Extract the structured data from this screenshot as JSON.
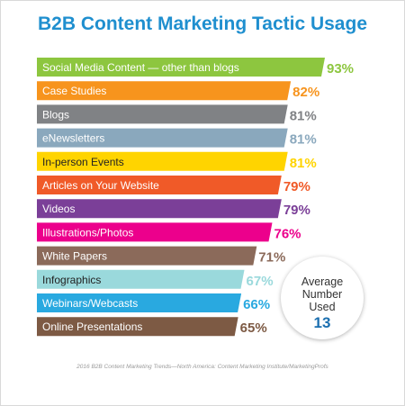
{
  "chart_data": {
    "type": "bar",
    "orientation": "horizontal",
    "title": "B2B Content Marketing Tactic Usage",
    "categories": [
      "Social Media Content — other than blogs",
      "Case Studies",
      "Blogs",
      "eNewsletters",
      "In-person Events",
      "Articles on Your Website",
      "Videos",
      "Illustrations/Photos",
      "White Papers",
      "Infographics",
      "Webinars/Webcasts",
      "Online Presentations"
    ],
    "values": [
      93,
      82,
      81,
      81,
      81,
      79,
      79,
      76,
      71,
      67,
      66,
      65
    ],
    "value_labels": [
      "93%",
      "82%",
      "81%",
      "81%",
      "81%",
      "79%",
      "79%",
      "76%",
      "71%",
      "67%",
      "66%",
      "65%"
    ],
    "colors": [
      "#8dc63f",
      "#f7941d",
      "#808285",
      "#8aa8bd",
      "#ffd400",
      "#f05a28",
      "#7b3f98",
      "#ec008c",
      "#8b6a5a",
      "#9ad9dc",
      "#29a9e0",
      "#7d5a44"
    ],
    "grid": false,
    "legend": "none"
  },
  "title_color": "#1f8fcf",
  "badge": {
    "label": "Average Number Used",
    "value": "13",
    "value_color": "#1b6fb0"
  },
  "source_note": "2016 B2B Content Marketing Trends—North America: Content Marketing Institute/MarketingProfs"
}
